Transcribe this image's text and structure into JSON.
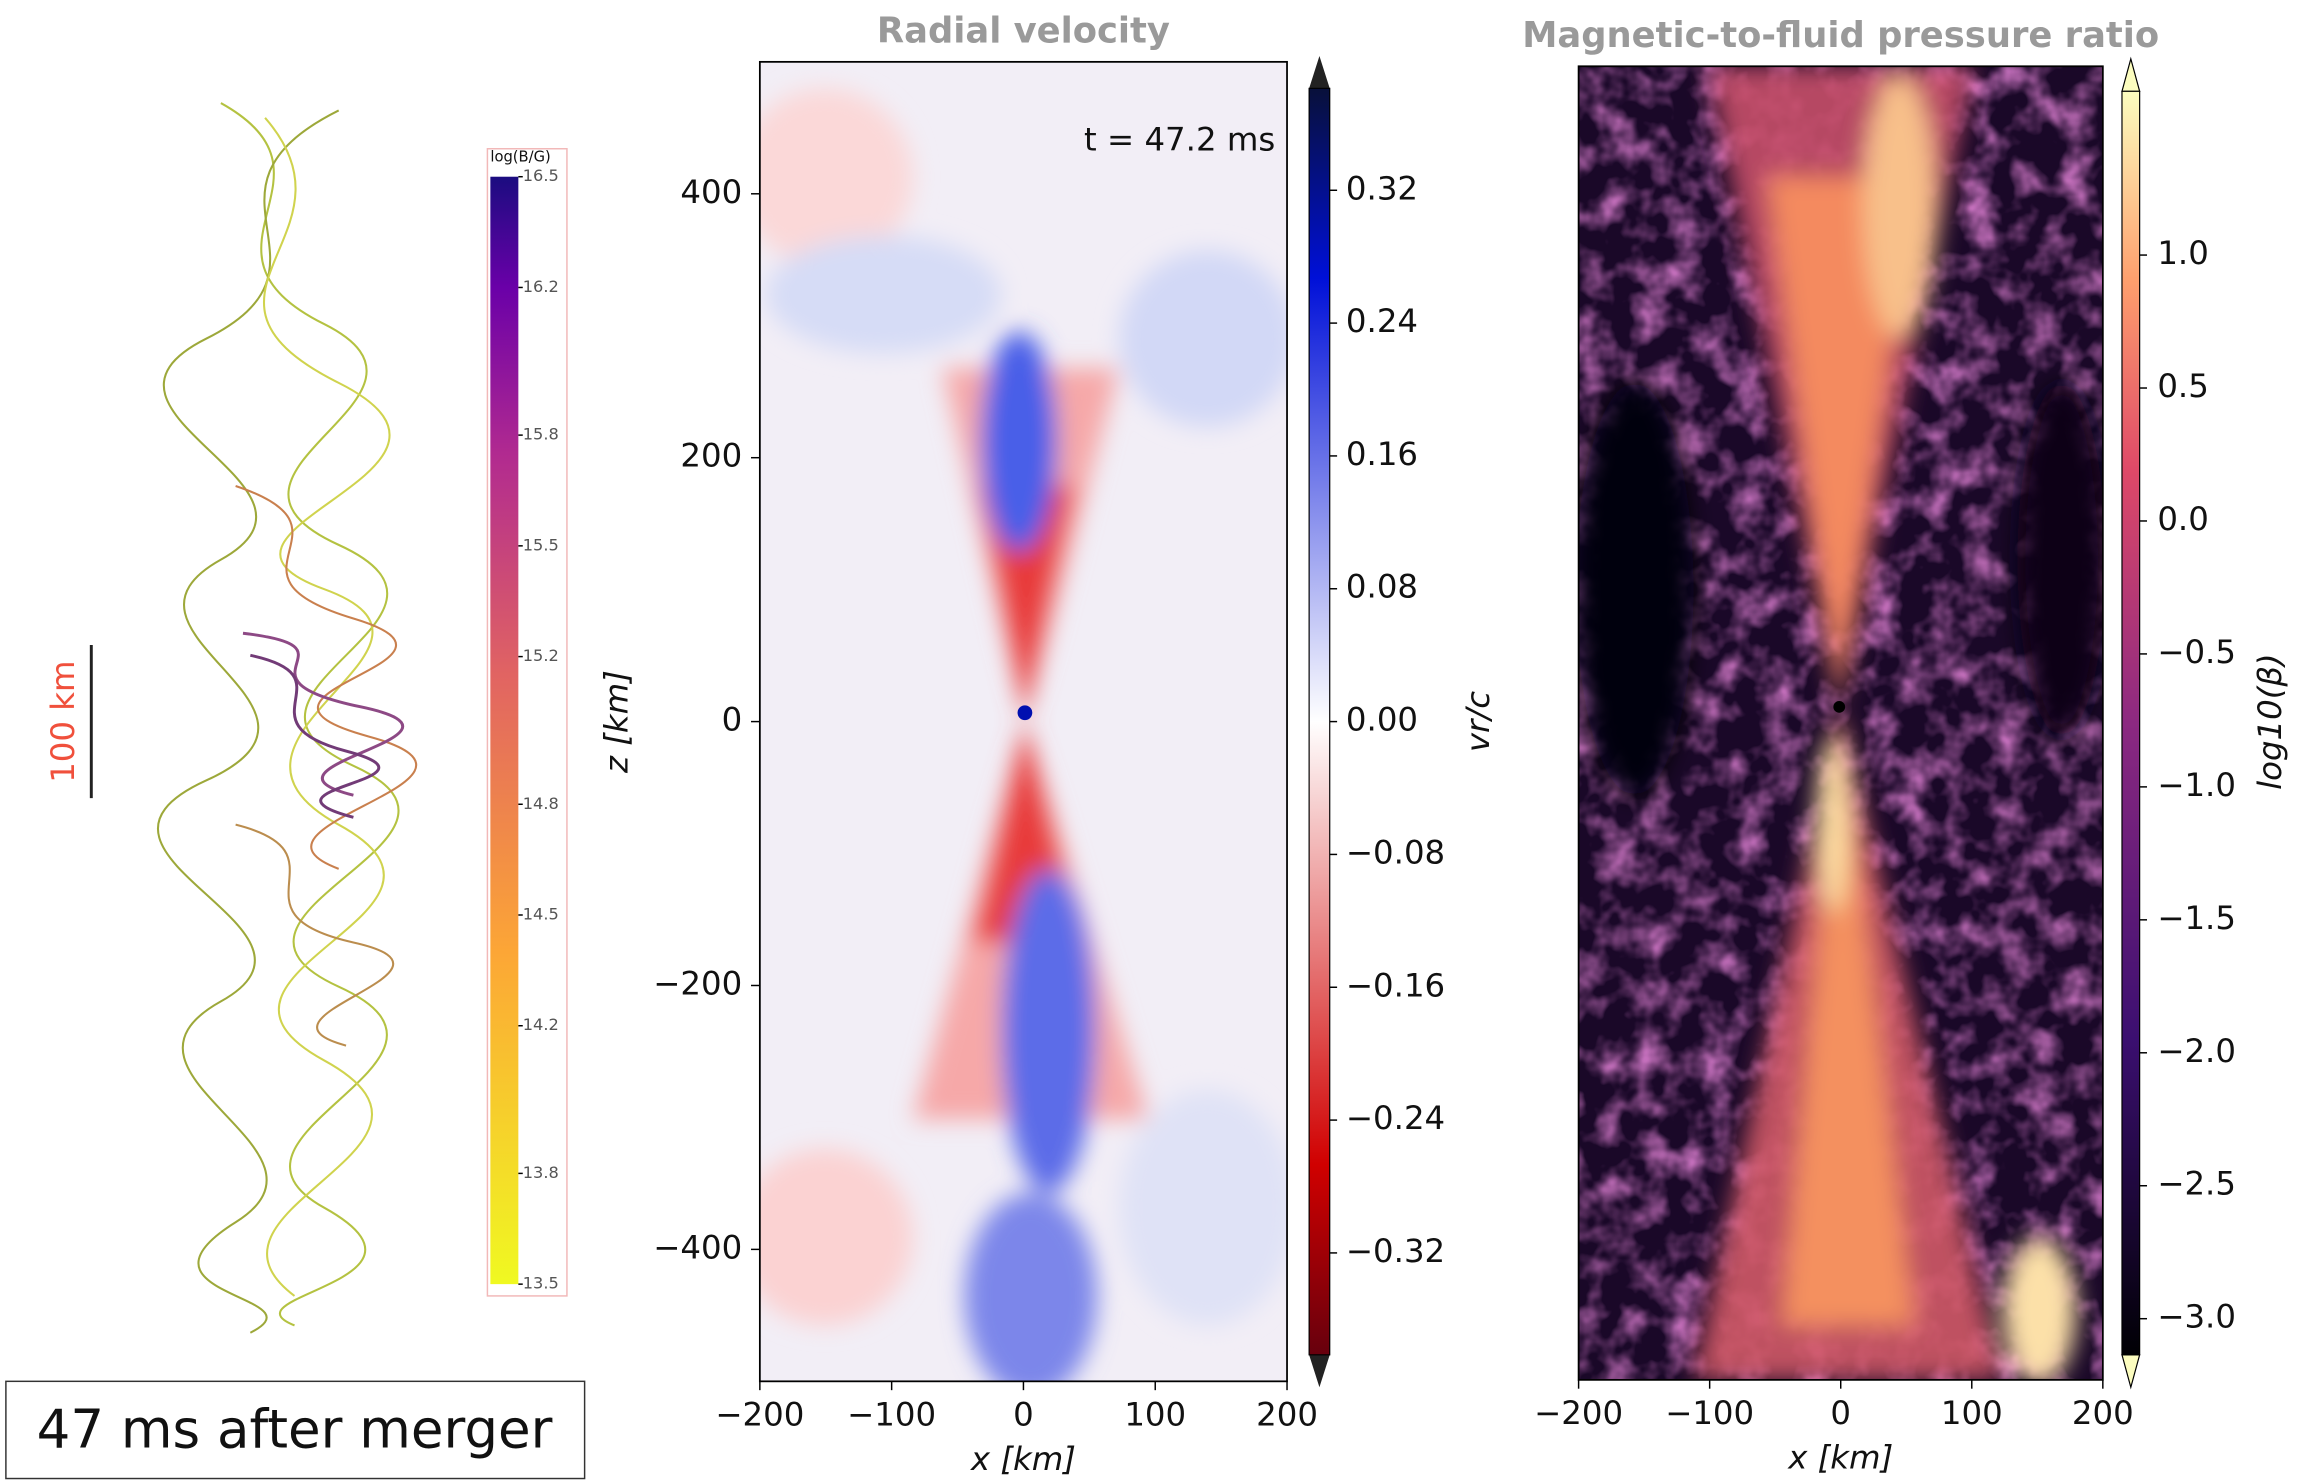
{
  "chart_data": [
    {
      "type": "field_lines",
      "colorbar_label": "log(B/G)",
      "clim": [
        13.5,
        16.5
      ],
      "cticks": [
        16.5,
        16.2,
        15.8,
        15.5,
        15.2,
        14.8,
        14.5,
        14.2,
        13.8,
        13.5
      ],
      "scale_bar": "100 km",
      "caption": "47 ms after merger"
    },
    {
      "type": "heatmap",
      "title": "Radial velocity",
      "annotation": "t = 47.2 ms",
      "xlabel": "x [km]",
      "ylabel": "z [km]",
      "xlim": [
        -200,
        200
      ],
      "ylim": [
        -500,
        500
      ],
      "xticks": [
        {
          "value": -200,
          "label": "−200"
        },
        {
          "value": -100,
          "label": "−100"
        },
        0,
        100,
        200
      ],
      "yticks": [
        {
          "value": -400,
          "label": "−400"
        },
        {
          "value": -200,
          "label": "−200"
        },
        0,
        200,
        400
      ],
      "colorbar_label": "vr/c",
      "clim": [
        -0.4,
        0.4
      ],
      "cticks": [
        0.32,
        0.24,
        0.16,
        0.08,
        {
          "value": 0,
          "label": "0.00"
        },
        {
          "value": -0.08,
          "label": "−0.08"
        },
        {
          "value": -0.16,
          "label": "−0.16"
        },
        {
          "value": -0.24,
          "label": "−0.24"
        },
        {
          "value": -0.32,
          "label": "−0.32"
        }
      ]
    },
    {
      "type": "heatmap",
      "title": "Magnetic-to-fluid pressure ratio",
      "xlabel": "x [km]",
      "xlim": [
        -200,
        200
      ],
      "xticks": [
        {
          "value": -200,
          "label": "−200"
        },
        {
          "value": -100,
          "label": "−100"
        },
        0,
        100,
        200
      ],
      "colorbar_label": "log10(β)",
      "clim": [
        -3.23,
        1.71
      ],
      "cticks": [
        {
          "value": 1,
          "label": "1.0"
        },
        {
          "value": 0.5,
          "label": "0.5"
        },
        {
          "value": 0,
          "label": "0.0"
        },
        {
          "value": -0.5,
          "label": "−0.5"
        },
        {
          "value": -1,
          "label": "−1.0"
        },
        {
          "value": -1.5,
          "label": "−1.5"
        },
        {
          "value": -2,
          "label": "−2.0"
        },
        {
          "value": -2.5,
          "label": "−2.5"
        },
        {
          "value": -3,
          "label": "−3.0"
        }
      ]
    }
  ]
}
